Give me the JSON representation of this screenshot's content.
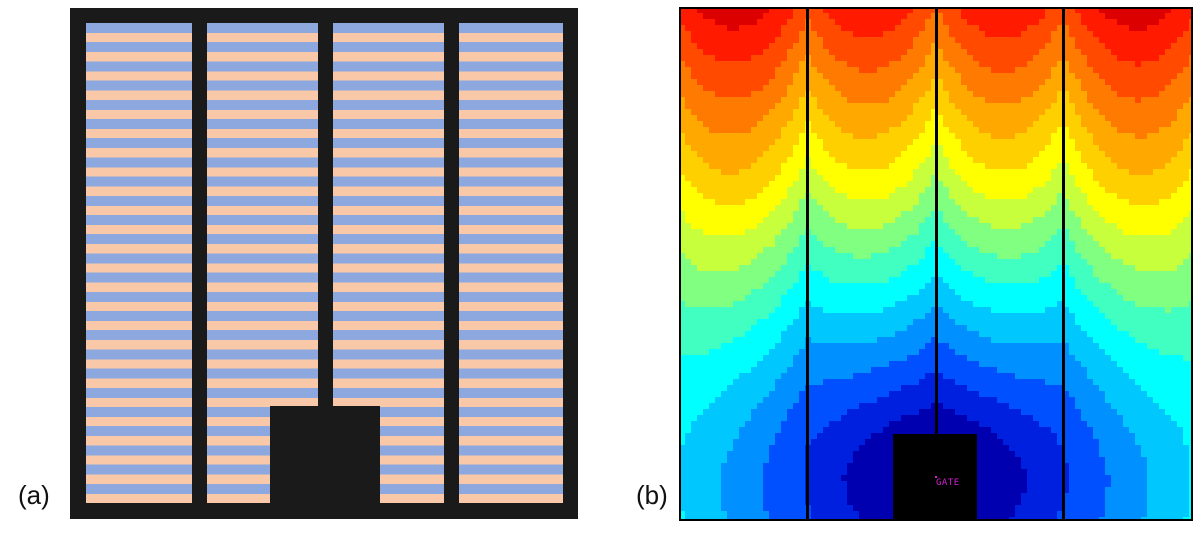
{
  "figure": {
    "panel_a": {
      "label": "(a)",
      "description": "Top-view layout of multi-finger device with alternating stripes",
      "colors": {
        "frame": "#1a1a1a",
        "stripe_blue": "#8ca8de",
        "stripe_peach": "#f8c8a8"
      },
      "finger_count": 4,
      "gate_pad": "center-bottom"
    },
    "panel_b": {
      "label": "(b)",
      "gate_label": "GATE",
      "colors": {
        "frame": "#000000",
        "gate": "#000000",
        "gate_label": "#d020d0"
      },
      "column_count": 4
    }
  },
  "chart_data": {
    "type": "heatmap",
    "title": "",
    "xlabel": "",
    "ylabel": "",
    "description": "Filled contour map of potential distribution across four device fingers, lowest at the central GATE pad (bottom center) and highest at the top of each finger",
    "colormap_levels_top_to_bottom": [
      "#dc0000",
      "#ff1a00",
      "#ff4a00",
      "#ff7a00",
      "#ffa800",
      "#ffd000",
      "#ffff00",
      "#c8ff3c",
      "#80ff80",
      "#40ffc0",
      "#00ffff",
      "#00c8ff",
      "#0090ff",
      "#0050ff",
      "#0020e0",
      "#0000b0"
    ],
    "legend": [],
    "annotations": [
      "GATE"
    ],
    "grid": false
  }
}
